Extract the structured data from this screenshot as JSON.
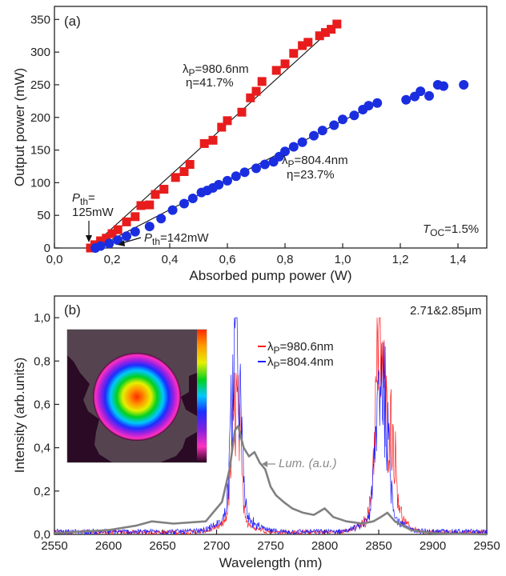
{
  "chart_data": [
    {
      "panel": "(a)",
      "type": "scatter",
      "xlabel": "Absorbed pump power (W)",
      "ylabel": "Output power (mW)",
      "xlim": [
        0.0,
        1.5
      ],
      "ylim": [
        0,
        370
      ],
      "xticks": [
        "0,0",
        "0,2",
        "0,4",
        "0,6",
        "0,8",
        "1,0",
        "1,2",
        "1,4"
      ],
      "yticks": [
        "0",
        "50",
        "100",
        "150",
        "200",
        "250",
        "300",
        "350"
      ],
      "series": [
        {
          "name": "λP=980.6nm",
          "color": "#e81c1c",
          "marker": "square",
          "points": [
            [
              0.125,
              0
            ],
            [
              0.14,
              5
            ],
            [
              0.16,
              11
            ],
            [
              0.18,
              15
            ],
            [
              0.2,
              22
            ],
            [
              0.22,
              28
            ],
            [
              0.25,
              40
            ],
            [
              0.28,
              48
            ],
            [
              0.3,
              65
            ],
            [
              0.33,
              66
            ],
            [
              0.35,
              82
            ],
            [
              0.38,
              90
            ],
            [
              0.42,
              108
            ],
            [
              0.45,
              117
            ],
            [
              0.47,
              128
            ],
            [
              0.52,
              160
            ],
            [
              0.55,
              165
            ],
            [
              0.58,
              185
            ],
            [
              0.6,
              195
            ],
            [
              0.65,
              208
            ],
            [
              0.68,
              230
            ],
            [
              0.7,
              240
            ],
            [
              0.72,
              255
            ],
            [
              0.77,
              272
            ],
            [
              0.8,
              282
            ],
            [
              0.83,
              298
            ],
            [
              0.86,
              310
            ],
            [
              0.88,
              315
            ],
            [
              0.92,
              325
            ],
            [
              0.94,
              330
            ],
            [
              0.96,
              335
            ],
            [
              0.98,
              343
            ]
          ]
        },
        {
          "name": "λP=804.4nm",
          "color": "#1a2ee0",
          "marker": "circle",
          "points": [
            [
              0.142,
              0
            ],
            [
              0.16,
              3
            ],
            [
              0.19,
              7
            ],
            [
              0.22,
              12
            ],
            [
              0.25,
              18
            ],
            [
              0.28,
              25
            ],
            [
              0.33,
              33
            ],
            [
              0.37,
              45
            ],
            [
              0.41,
              58
            ],
            [
              0.45,
              68
            ],
            [
              0.48,
              76
            ],
            [
              0.51,
              85
            ],
            [
              0.53,
              88
            ],
            [
              0.55,
              92
            ],
            [
              0.57,
              97
            ],
            [
              0.6,
              103
            ],
            [
              0.63,
              110
            ],
            [
              0.66,
              116
            ],
            [
              0.7,
              122
            ],
            [
              0.73,
              128
            ],
            [
              0.76,
              132
            ],
            [
              0.78,
              140
            ],
            [
              0.8,
              148
            ],
            [
              0.83,
              155
            ],
            [
              0.86,
              162
            ],
            [
              0.9,
              172
            ],
            [
              0.93,
              180
            ],
            [
              0.97,
              188
            ],
            [
              1.0,
              197
            ],
            [
              1.04,
              203
            ],
            [
              1.07,
              212
            ],
            [
              1.09,
              218
            ],
            [
              1.12,
              222
            ],
            [
              1.22,
              227
            ],
            [
              1.25,
              232
            ],
            [
              1.27,
              240
            ],
            [
              1.3,
              233
            ],
            [
              1.33,
              250
            ],
            [
              1.35,
              248
            ],
            [
              1.42,
              250
            ]
          ]
        }
      ],
      "fit_lines": [
        {
          "color": "#e81c1c",
          "from": [
            0.125,
            0
          ],
          "to": [
            0.98,
            343
          ]
        },
        {
          "color": "#1a2ee0",
          "from": [
            0.142,
            0
          ],
          "to": [
            1.12,
            222
          ]
        }
      ],
      "annotations": {
        "red_wl": "λP=980.6nm",
        "red_eff": "η=41.7%",
        "blue_wl": "λP=804.4nm",
        "blue_eff": "η=23.7%",
        "pth_red_a": "Pth=",
        "pth_red_b": "125mW",
        "pth_blue": "Pth=142mW",
        "toc": "TOC=1.5%"
      }
    },
    {
      "panel": "(b)",
      "type": "line",
      "xlabel": "Wavelength (nm)",
      "ylabel": "Intensity (arb.units)",
      "xlim": [
        2550,
        2950
      ],
      "ylim": [
        0,
        1.1
      ],
      "xticks": [
        "2550",
        "2600",
        "2650",
        "2700",
        "2750",
        "2800",
        "2850",
        "2900",
        "2950"
      ],
      "yticks": [
        "0,0",
        "0,2",
        "0,4",
        "0,6",
        "0,8",
        "1,0"
      ],
      "series": [
        {
          "name": "λP=980.6nm",
          "color": "#ff1a1a",
          "peaks": [
            [
              2718,
              0.65
            ],
            [
              2851,
              0.96
            ],
            [
              2862,
              0.45
            ]
          ]
        },
        {
          "name": "λP=804.4nm",
          "color": "#1a1aff",
          "peaks": [
            [
              2718,
              1.0
            ],
            [
              2851,
              0.66
            ],
            [
              2857,
              0.35
            ]
          ]
        },
        {
          "name": "Lum. (a.u.)",
          "color": "#808080",
          "points": [
            [
              2550,
              0.005
            ],
            [
              2600,
              0.02
            ],
            [
              2625,
              0.04
            ],
            [
              2640,
              0.06
            ],
            [
              2660,
              0.05
            ],
            [
              2690,
              0.06
            ],
            [
              2705,
              0.15
            ],
            [
              2712,
              0.3
            ],
            [
              2717,
              0.48
            ],
            [
              2720,
              0.5
            ],
            [
              2725,
              0.4
            ],
            [
              2730,
              0.36
            ],
            [
              2735,
              0.38
            ],
            [
              2740,
              0.33
            ],
            [
              2745,
              0.3
            ],
            [
              2750,
              0.22
            ],
            [
              2755,
              0.18
            ],
            [
              2762,
              0.15
            ],
            [
              2770,
              0.12
            ],
            [
              2780,
              0.1
            ],
            [
              2790,
              0.09
            ],
            [
              2800,
              0.12
            ],
            [
              2808,
              0.08
            ],
            [
              2820,
              0.06
            ],
            [
              2835,
              0.05
            ],
            [
              2845,
              0.06
            ],
            [
              2852,
              0.08
            ],
            [
              2858,
              0.1
            ],
            [
              2865,
              0.06
            ],
            [
              2880,
              0.02
            ],
            [
              2900,
              0.005
            ],
            [
              2950,
              0.0
            ]
          ]
        }
      ],
      "annotations": {
        "lum": "Lum. (a.u.)",
        "wl_label": "2.71&2.85μm",
        "legend_red": "λP=980.6nm",
        "legend_blue": "λP=804.4nm"
      }
    }
  ]
}
